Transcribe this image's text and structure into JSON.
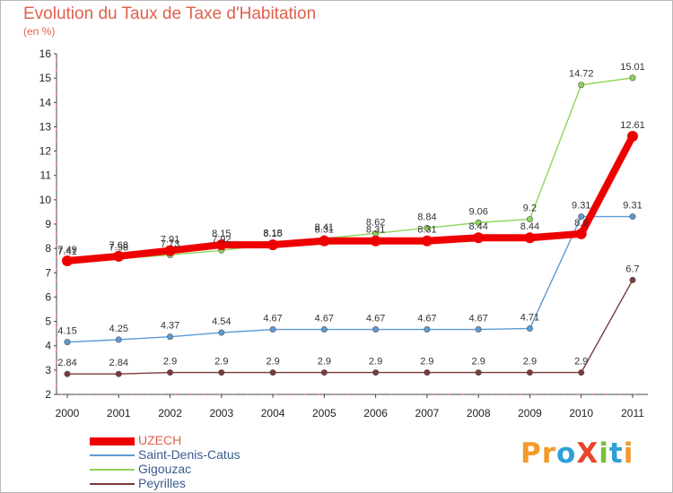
{
  "title": "Evolution du Taux de Taxe d'Habitation",
  "subtitle": "(en %)",
  "brand": {
    "text": "ProXiti",
    "letters": [
      {
        "ch": "P",
        "color": "#f39a2b"
      },
      {
        "ch": "r",
        "color": "#f39a2b"
      },
      {
        "ch": "o",
        "color": "#2f9fd6"
      },
      {
        "ch": "X",
        "color": "#e8452c"
      },
      {
        "ch": "i",
        "color": "#7bbf3a"
      },
      {
        "ch": "t",
        "color": "#2f9fd6"
      },
      {
        "ch": "i",
        "color": "#f39a2b"
      }
    ]
  },
  "chart_data": {
    "type": "line",
    "x": [
      "2000",
      "2001",
      "2002",
      "2003",
      "2004",
      "2005",
      "2006",
      "2007",
      "2008",
      "2009",
      "2010",
      "2011"
    ],
    "ylim": [
      2,
      16
    ],
    "yticks": [
      "2",
      "3",
      "4",
      "5",
      "6",
      "7",
      "8",
      "9",
      "10",
      "11",
      "12",
      "13",
      "14",
      "15",
      "16"
    ],
    "grid": false,
    "legend_position": "bottom-left",
    "series": [
      {
        "name": "UZECH",
        "color": "#ee0000",
        "width": "thick",
        "values": [
          7.49,
          7.68,
          7.91,
          8.15,
          8.15,
          8.31,
          8.31,
          8.31,
          8.44,
          8.44,
          8.6,
          12.61
        ],
        "labels": [
          "7.49",
          "7.68",
          "7.91",
          "8.15",
          "8.15",
          "8.31",
          "8.31",
          "8.31",
          "8.44",
          "8.44",
          "8.6",
          "12.61"
        ]
      },
      {
        "name": "Saint-Denis-Catus",
        "color": "#5b9bd5",
        "width": "thin",
        "values": [
          4.15,
          4.25,
          4.37,
          4.54,
          4.67,
          4.67,
          4.67,
          4.67,
          4.67,
          4.71,
          9.31,
          9.31
        ],
        "labels": [
          "4.15",
          "4.25",
          "4.37",
          "4.54",
          "4.67",
          "4.67",
          "4.67",
          "4.67",
          "4.67",
          "4.71",
          "9.31",
          "9.31"
        ]
      },
      {
        "name": "Gigouzac",
        "color": "#8fd45a",
        "width": "thin",
        "values": [
          7.41,
          7.58,
          7.73,
          7.92,
          8.18,
          8.41,
          8.62,
          8.84,
          9.06,
          9.2,
          14.72,
          15.01
        ],
        "labels": [
          "7.41",
          "7.58",
          "7.73",
          "7.92",
          "8.18",
          "8.41",
          "8.62",
          "8.84",
          "9.06",
          "9.2",
          "14.72",
          "15.01"
        ]
      },
      {
        "name": "Peyrilles",
        "color": "#7b3a3a",
        "width": "thin",
        "values": [
          2.84,
          2.84,
          2.9,
          2.9,
          2.9,
          2.9,
          2.9,
          2.9,
          2.9,
          2.9,
          2.9,
          6.7
        ],
        "labels": [
          "2.84",
          "2.84",
          "2.9",
          "2.9",
          "2.9",
          "2.9",
          "2.9",
          "2.9",
          "2.9",
          "2.9",
          "2.9",
          "6.7"
        ]
      }
    ]
  }
}
